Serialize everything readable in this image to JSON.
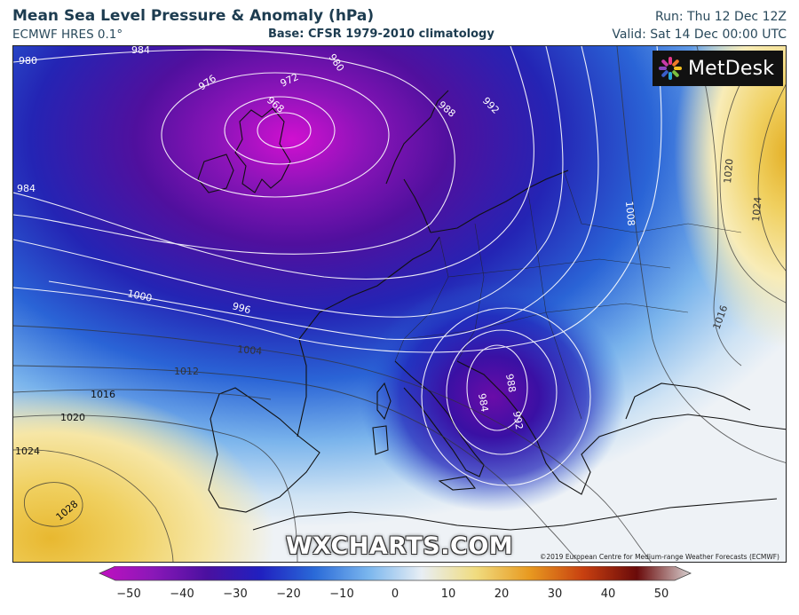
{
  "header": {
    "title": "Mean Sea Level Pressure & Anomaly (hPa)",
    "model": "ECMWF HRES 0.1°",
    "base": "Base: CFSR 1979-2010 climatology",
    "run": "Run: Thu 12 Dec 12Z",
    "valid": "Valid: Sat 14 Dec 00:00 UTC"
  },
  "logo": {
    "text": "MetDesk"
  },
  "watermark": "WXCHARTS.COM",
  "copyright": "©2019 European Centre for Medium-range Weather Forecasts (ECMWF)",
  "isobar_labels": [
    "984",
    "980",
    "976",
    "972",
    "968",
    "980",
    "988",
    "992",
    "984",
    "1000",
    "996",
    "1004",
    "1012",
    "1016",
    "1020",
    "1024",
    "1028",
    "1008",
    "1016",
    "1020",
    "1024",
    "988",
    "984",
    "992"
  ],
  "colorbar": {
    "ticks": [
      "−50",
      "−40",
      "−30",
      "−20",
      "−10",
      "0",
      "10",
      "20",
      "30",
      "40",
      "50"
    ],
    "colors": [
      "#c010c0",
      "#8a18b8",
      "#4a10a0",
      "#2020c0",
      "#2a6ad8",
      "#7ab6ee",
      "#e8eef4",
      "#f0dc80",
      "#e89a20",
      "#c84010",
      "#6a0a0a",
      "#d8d0d0"
    ]
  },
  "colors": {
    "low_core": "#d010d0",
    "deep_purple": "#5a0a9a",
    "navy": "#1a1aa0",
    "blue": "#2a6ad8",
    "light_blue": "#a8d0f0",
    "neutral": "#eef2f6",
    "yellow": "#f0d060"
  }
}
